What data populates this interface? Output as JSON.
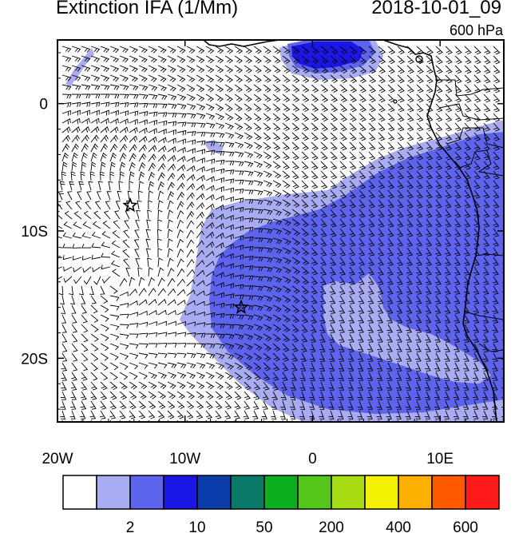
{
  "header": {
    "title": "Extinction IFA (1/Mm)",
    "datetime": "2018-10-01_09",
    "level": "600 hPa"
  },
  "map": {
    "lon_range": [
      -20,
      15
    ],
    "lat_range": [
      -25,
      5
    ],
    "x_ticks": [
      {
        "value": -20,
        "label": "20W"
      },
      {
        "value": -10,
        "label": "10W"
      },
      {
        "value": 0,
        "label": "0"
      },
      {
        "value": 10,
        "label": "10E"
      }
    ],
    "y_ticks": [
      {
        "value": 0,
        "label": "0"
      },
      {
        "value": -10,
        "label": "10S"
      },
      {
        "value": -20,
        "label": "20S"
      }
    ],
    "markers": [
      {
        "name": "star-marker-1",
        "lon": -14.3,
        "lat": -8.0
      },
      {
        "name": "star-marker-2",
        "lon": -5.6,
        "lat": -16.0
      }
    ],
    "fill_colors": {
      "level1": "#a9acf2",
      "level2": "#5c64ee",
      "level3": "#1a17e6"
    }
  },
  "colorbar": {
    "colors": [
      "#ffffff",
      "#a9acf2",
      "#5c64ee",
      "#1a17e6",
      "#0a3cab",
      "#0a7a68",
      "#0cae1e",
      "#55c71a",
      "#a8dc12",
      "#f4f200",
      "#fcb000",
      "#ff5a00",
      "#ff1a1a"
    ],
    "labels": [
      {
        "after_box": 1,
        "text": "2"
      },
      {
        "after_box": 3,
        "text": "10"
      },
      {
        "after_box": 5,
        "text": "50"
      },
      {
        "after_box": 7,
        "text": "200"
      },
      {
        "after_box": 9,
        "text": "400"
      },
      {
        "after_box": 11,
        "text": "600"
      }
    ]
  }
}
